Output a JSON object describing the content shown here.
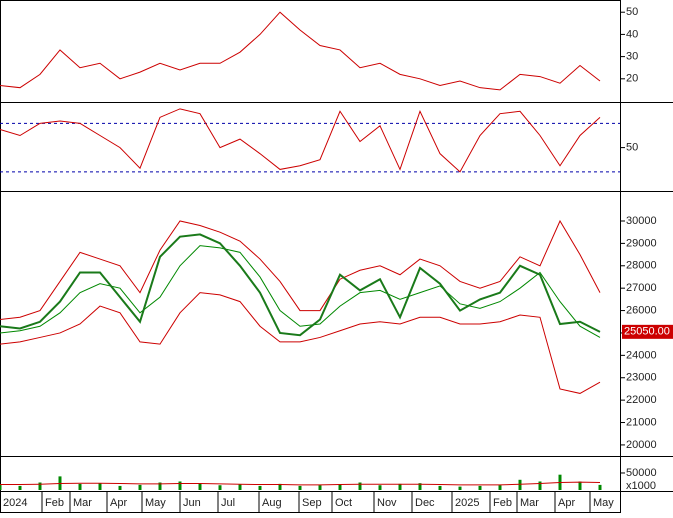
{
  "chart_data": {
    "type": "stock-panels",
    "x": [
      0,
      1,
      2,
      3,
      4,
      5,
      6,
      7,
      8,
      9,
      10,
      11,
      12,
      13,
      14,
      15,
      16,
      17,
      18,
      19,
      20,
      21,
      22,
      23,
      24,
      25,
      26,
      27,
      28,
      29,
      30
    ],
    "xlim": [
      0,
      31
    ],
    "xticks": [
      {
        "value": 0,
        "label": "2024"
      },
      {
        "value": 2.1,
        "label": "Feb"
      },
      {
        "value": 3.5,
        "label": "Mar"
      },
      {
        "value": 5.35,
        "label": "Apr"
      },
      {
        "value": 7.1,
        "label": "May"
      },
      {
        "value": 9,
        "label": "Jun"
      },
      {
        "value": 10.9,
        "label": "Jul"
      },
      {
        "value": 12.95,
        "label": "Aug"
      },
      {
        "value": 14.95,
        "label": "Sep"
      },
      {
        "value": 16.6,
        "label": "Oct"
      },
      {
        "value": 18.7,
        "label": "Nov"
      },
      {
        "value": 20.6,
        "label": "Dec"
      },
      {
        "value": 22.6,
        "label": "2025"
      },
      {
        "value": 24.5,
        "label": "Feb"
      },
      {
        "value": 25.85,
        "label": "Mar"
      },
      {
        "value": 27.75,
        "label": "Apr"
      },
      {
        "value": 29.5,
        "label": "May"
      }
    ],
    "panels": [
      {
        "type": "line",
        "ylim": [
          10,
          55.5
        ],
        "yticks": [
          20,
          30,
          40,
          50
        ],
        "series": [
          {
            "color": "#cc0000",
            "values": [
              17,
              16,
              22,
              33,
              25,
              27,
              20,
              23,
              27,
              24,
              27,
              27,
              32,
              40,
              50,
              42,
              35,
              33,
              25,
              27,
              22,
              20,
              17,
              19,
              16,
              15,
              22,
              21,
              18,
              26,
              19
            ]
          }
        ]
      },
      {
        "type": "line",
        "ylim": [
          15,
          86
        ],
        "yticks": [
          50
        ],
        "levels": [
          30,
          70
        ],
        "level_color": "#0000aa",
        "series": [
          {
            "color": "#cc0000",
            "values": [
              65,
              60,
              70,
              72,
              70,
              60,
              50,
              33,
              75,
              82,
              78,
              50,
              57,
              45,
              32,
              35,
              40,
              80,
              55,
              68,
              32,
              80,
              45,
              30,
              60,
              78,
              80,
              60,
              35,
              60,
              75
            ]
          }
        ]
      },
      {
        "type": "line",
        "ylim": [
          19550,
          31250
        ],
        "yticks": [
          20000,
          21000,
          22000,
          23000,
          24000,
          25000,
          26000,
          27000,
          28000,
          29000,
          30000
        ],
        "last_label": {
          "value": 25050,
          "label": "25050.00"
        },
        "series": [
          {
            "color": "#cc0000",
            "values": [
              25600,
              25700,
              26000,
              27300,
              28600,
              28300,
              28000,
              26800,
              28700,
              30000,
              29800,
              29500,
              29100,
              28300,
              27300,
              26000,
              26000,
              27400,
              27800,
              28000,
              27600,
              28300,
              28000,
              27300,
              27000,
              27300,
              28400,
              28000,
              30000,
              28500,
              26800
            ]
          },
          {
            "color": "#008800",
            "values": [
              25000,
              25100,
              25300,
              25900,
              26800,
              27200,
              27000,
              25900,
              26600,
              28000,
              28900,
              28800,
              28600,
              27500,
              26000,
              25300,
              25400,
              26200,
              26800,
              26900,
              26500,
              26800,
              27100,
              26300,
              26100,
              26400,
              27000,
              27700,
              26400,
              25300,
              24800
            ]
          },
          {
            "color": "#cc0000",
            "values": [
              24500,
              24600,
              24800,
              25000,
              25400,
              26200,
              25900,
              24600,
              24500,
              25900,
              26800,
              26700,
              26400,
              25300,
              24600,
              24600,
              24800,
              25100,
              25400,
              25500,
              25400,
              25700,
              25700,
              25400,
              25400,
              25500,
              25800,
              25700,
              22500,
              22300,
              22800
            ]
          },
          {
            "color": "#1a7a1a",
            "width": 2,
            "values": [
              25300,
              25200,
              25500,
              26400,
              27700,
              27700,
              26600,
              25500,
              28400,
              29300,
              29400,
              29000,
              28000,
              26800,
              25000,
              24900,
              25600,
              27600,
              26900,
              27400,
              25700,
              27900,
              27200,
              26000,
              26500,
              26800,
              28000,
              27600,
              25400,
              25500,
              25050
            ]
          }
        ]
      },
      {
        "type": "bar",
        "ylim": [
          0,
          94000
        ],
        "yticks": [
          50000
        ],
        "unit": "x1000",
        "color": "#008800",
        "series": [
          {
            "color": "#008800",
            "values": [
              15000,
              12000,
              22000,
              40000,
              18000,
              20000,
              12000,
              15000,
              22000,
              25000,
              18000,
              14000,
              16000,
              12000,
              18000,
              12000,
              14000,
              16000,
              22000,
              14000,
              18000,
              20000,
              12000,
              10000,
              12000,
              14000,
              30000,
              25000,
              45000,
              25000,
              15000
            ]
          },
          {
            "color": "#cc0000",
            "line": true,
            "values": [
              16000,
              16000,
              17000,
              19000,
              20000,
              20000,
              19000,
              18000,
              18000,
              19000,
              19000,
              18000,
              17000,
              16000,
              16000,
              15000,
              15000,
              16000,
              17000,
              17000,
              17000,
              17000,
              16000,
              15000,
              15000,
              15000,
              17000,
              19000,
              22000,
              23000,
              22000
            ]
          }
        ]
      }
    ]
  }
}
